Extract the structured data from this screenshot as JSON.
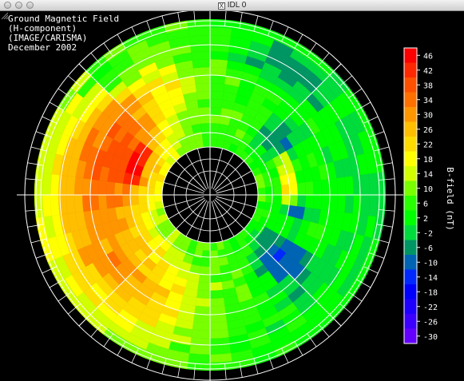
{
  "window": {
    "title": "IDL 0",
    "x_icon": "X"
  },
  "plot": {
    "title_lines": [
      "Ground Magnetic Field",
      "(H-component)",
      "(IMAGE/CARISMA)",
      "December 2002"
    ]
  },
  "colorbar": {
    "label": "B-field (nT)",
    "ticks": [
      "46",
      "42",
      "38",
      "34",
      "30",
      "26",
      "22",
      "18",
      "14",
      "10",
      "6",
      "2",
      "-2",
      "-6",
      "-10",
      "-14",
      "-18",
      "-22",
      "-26",
      "-30"
    ],
    "colors": [
      "#ff0000",
      "#ff2800",
      "#ff5000",
      "#ff7000",
      "#ff9600",
      "#ffbe00",
      "#ffdc00",
      "#ffff00",
      "#d2ff00",
      "#78ff00",
      "#28ff00",
      "#00ff00",
      "#00dc3c",
      "#009664",
      "#0064b4",
      "#0028ff",
      "#0000ff",
      "#1e00ff",
      "#3c00ff",
      "#6400ff"
    ]
  },
  "chart_data": {
    "type": "heatmap",
    "title": "Ground Magnetic Field (H-component) (IMAGE/CARISMA) December 2002",
    "colorbar_label": "B-field (nT)",
    "colorbar_range": [
      -30,
      46
    ],
    "grid": "polar",
    "rings": [
      "outer",
      "middle",
      "inner"
    ],
    "sectors": 36,
    "regions": [
      {
        "name": "left/upper-left outer ring",
        "approx_value": 34
      },
      {
        "name": "lower-left outer ring",
        "approx_value": 22
      },
      {
        "name": "right outer ring",
        "approx_value": 6
      },
      {
        "name": "lower-right patch",
        "approx_value": -16
      },
      {
        "name": "right inner patch",
        "approx_value": -14
      },
      {
        "name": "upper-right inner patch",
        "approx_value": -10
      },
      {
        "name": "lower-right middle ring",
        "approx_value": -6
      },
      {
        "name": "upper outer edge",
        "approx_value": -6
      },
      {
        "name": "inner ring left",
        "approx_value": 18
      }
    ]
  }
}
